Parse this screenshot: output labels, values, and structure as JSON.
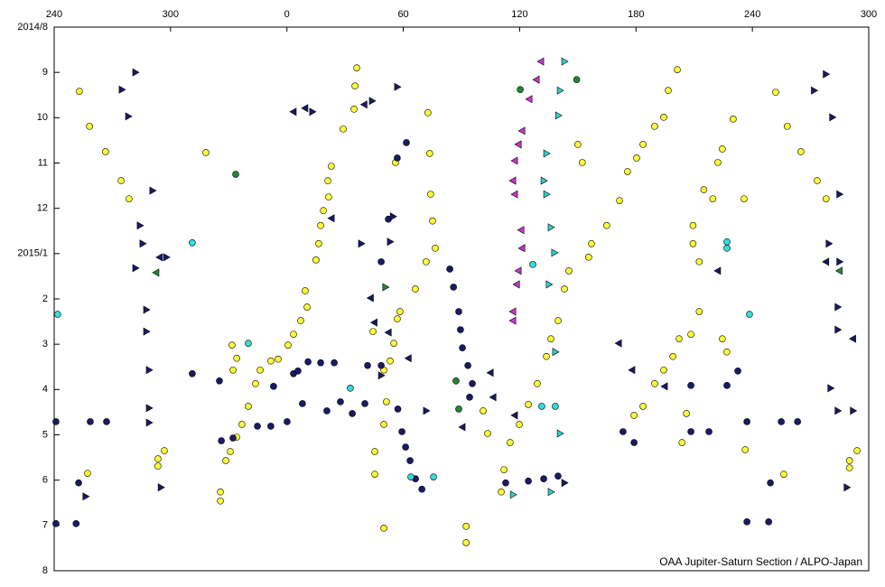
{
  "chart_data": {
    "type": "scatter",
    "annotation": "OAA Jupiter-Saturn Section / ALPO-Japan",
    "xlim": [
      240,
      660
    ],
    "xticks": [
      240,
      300,
      {
        "value": 360,
        "label": "0"
      },
      {
        "value": 420,
        "label": "60"
      },
      {
        "value": 480,
        "label": "120"
      },
      {
        "value": 540,
        "label": "180"
      },
      {
        "value": 600,
        "label": "240"
      },
      {
        "value": 660,
        "label": "300"
      }
    ],
    "ylim": [
      12,
      0
    ],
    "yticks": [
      {
        "value": 0,
        "label": "2014/8"
      },
      {
        "value": 1,
        "label": "9"
      },
      {
        "value": 2,
        "label": "10"
      },
      {
        "value": 3,
        "label": "11"
      },
      {
        "value": 4,
        "label": "12"
      },
      {
        "value": 5,
        "label": "2015/1"
      },
      {
        "value": 6,
        "label": "2"
      },
      {
        "value": 7,
        "label": "3"
      },
      {
        "value": 8,
        "label": "4"
      },
      {
        "value": 9,
        "label": "5"
      },
      {
        "value": 10,
        "label": "6"
      },
      {
        "value": 11,
        "label": "7"
      },
      {
        "value": 12,
        "label": "8"
      }
    ],
    "series": [
      {
        "marker": "circle",
        "color": "#ffff33",
        "x": [
          253.0,
          258.2,
          266.5,
          274.5,
          278.6,
          318.2,
          296.8,
          293.5,
          293.5,
          257.2,
          325.7,
          325.7,
          328.5,
          330.8,
          334.1,
          336.8,
          340.1,
          343.8,
          346.2,
          351.7,
          355.5,
          360.6,
          363.4,
          367.1,
          370.4,
          369.4,
          332.2,
          334.1,
          331.7,
          375.0,
          376.4,
          377.4,
          378.8,
          381.5,
          381.1,
          382.9,
          389.0,
          394.6,
          396.0,
          395.1,
          405.3,
          405.3,
          410.0,
          410.0,
          411.3,
          413.2,
          415.1,
          416.9,
          418.3,
          426.2,
          404.4,
          416.0,
          432.7,
          433.6,
          434.1,
          435.1,
          436.5,
          431.8,
          410.0,
          452.4,
          452.4,
          463.5,
          461.2,
          470.5,
          471.9,
          475.1,
          479.8,
          484.5,
          489.1,
          493.8,
          496.1,
          499.8,
          503.1,
          505.4,
          510.0,
          512.3,
          517.0,
          515.6,
          524.9,
          531.5,
          535.6,
          540.3,
          543.6,
          549.6,
          554.3,
          556.6,
          561.3,
          539.0,
          543.6,
          549.6,
          554.3,
          559.0,
          562.2,
          568.3,
          566.0,
          563.7,
          572.6,
          572.6,
          569.4,
          569.4,
          575.0,
          579.6,
          582.2,
          584.5,
          590.1,
          595.7,
          584.5,
          586.8,
          596.3,
          612.0,
          618.0,
          625.0,
          633.4,
          638.0,
          654.0,
          650.1,
          650.1,
          616.2
        ],
        "y": [
          1.42,
          2.19,
          2.75,
          3.39,
          3.79,
          2.77,
          9.35,
          9.53,
          9.69,
          9.85,
          10.46,
          10.26,
          9.57,
          9.37,
          9.05,
          8.77,
          8.37,
          7.87,
          7.57,
          7.37,
          7.33,
          7.02,
          6.78,
          6.48,
          6.18,
          5.82,
          7.57,
          7.31,
          7.02,
          5.14,
          4.78,
          4.38,
          4.05,
          3.75,
          3.39,
          3.07,
          2.25,
          1.81,
          0.9,
          1.3,
          9.37,
          9.87,
          8.77,
          7.57,
          8.27,
          7.37,
          6.98,
          6.44,
          6.28,
          5.78,
          6.72,
          2.99,
          1.89,
          2.79,
          3.69,
          4.28,
          4.88,
          5.18,
          11.06,
          11.02,
          11.38,
          8.97,
          8.47,
          10.26,
          9.77,
          9.17,
          8.77,
          8.33,
          7.87,
          7.27,
          6.88,
          6.48,
          5.78,
          5.38,
          2.59,
          2.99,
          4.78,
          5.08,
          4.38,
          3.83,
          3.19,
          2.89,
          2.59,
          2.19,
          1.99,
          1.4,
          0.94,
          8.57,
          8.37,
          7.87,
          7.57,
          7.27,
          6.88,
          6.78,
          8.53,
          9.17,
          6.28,
          5.18,
          4.78,
          4.38,
          3.59,
          3.79,
          2.99,
          2.69,
          2.03,
          3.79,
          6.88,
          7.17,
          9.33,
          1.44,
          2.19,
          2.75,
          3.39,
          3.79,
          9.35,
          9.57,
          9.73,
          9.87
        ]
      },
      {
        "marker": "circle",
        "color": "#1a1a66",
        "x": [
          240.9,
          252.6,
          251.3,
          240.9,
          258.6,
          267.0,
          311.2,
          325.2,
          326.2,
          332.2,
          344.8,
          351.7,
          360.1,
          353.1,
          363.4,
          365.7,
          370.9,
          377.4,
          384.4,
          368.0,
          380.6,
          387.6,
          393.7,
          400.2,
          401.6,
          408.6,
          408.6,
          412.3,
          416.9,
          421.6,
          419.3,
          421.2,
          423.5,
          426.3,
          429.6,
          417.2,
          444.0,
          445.9,
          448.6,
          449.5,
          450.5,
          453.3,
          454.2,
          455.6,
          472.8,
          484.5,
          492.4,
          499.8,
          533.3,
          539.0,
          568.3,
          568.3,
          577.6,
          586.9,
          592.5,
          597.2,
          597.2,
          609.3,
          608.4,
          614.9,
          623.3
        ],
        "y": [
          8.71,
          10.06,
          10.96,
          10.96,
          8.71,
          8.71,
          7.65,
          7.81,
          9.13,
          9.07,
          8.81,
          8.81,
          8.71,
          7.93,
          7.65,
          7.59,
          7.39,
          7.41,
          7.41,
          8.31,
          8.47,
          8.27,
          8.53,
          8.31,
          7.47,
          7.47,
          5.18,
          4.24,
          2.89,
          2.55,
          8.93,
          9.27,
          9.57,
          9.97,
          10.2,
          8.43,
          5.34,
          5.74,
          6.28,
          6.68,
          7.08,
          7.47,
          8.17,
          7.87,
          10.06,
          10.02,
          9.97,
          9.91,
          8.93,
          9.17,
          7.91,
          8.93,
          8.93,
          7.91,
          7.59,
          8.71,
          10.92,
          10.06,
          10.92,
          8.71,
          8.71
        ]
      },
      {
        "marker": "triangle-right",
        "color": "#1a1a66",
        "x": [
          274.9,
          281.9,
          278.2,
          284.2,
          285.6,
          281.9,
          287.5,
          287.5,
          288.9,
          288.9,
          288.9,
          295.0,
          256.2,
          297.8,
          290.7,
          373.1,
          398.3,
          403.9,
          416.9,
          413.2,
          408.6,
          431.8,
          414.7,
          503.1,
          637.9,
          631.8,
          641.2,
          644.9,
          639.4,
          644.9,
          644.0,
          644.0,
          640.3,
          644.0,
          651.9,
          648.7
        ],
        "y": [
          1.38,
          1.0,
          1.97,
          4.38,
          4.78,
          5.32,
          6.24,
          6.72,
          7.57,
          8.41,
          8.73,
          10.16,
          10.36,
          5.08,
          3.61,
          1.87,
          4.78,
          1.63,
          1.32,
          4.74,
          7.69,
          8.47,
          4.18,
          10.06,
          1.04,
          1.4,
          1.99,
          3.69,
          4.78,
          5.18,
          6.18,
          6.68,
          7.97,
          8.47,
          8.47,
          10.16
        ]
      },
      {
        "marker": "triangle-left",
        "color": "#1a1a66",
        "x": [
          363.4,
          369.4,
          383.0,
          399.9,
          405.1,
          403.2,
          412.4,
          422.7,
          450.5,
          465.0,
          466.4,
          477.5,
          531.1,
          538.0,
          554.8,
          582.2,
          638.0,
          651.9,
          294.4
        ],
        "y": [
          1.87,
          1.79,
          4.22,
          1.71,
          6.52,
          5.98,
          6.74,
          7.31,
          8.83,
          7.63,
          8.17,
          8.57,
          6.98,
          7.57,
          7.93,
          5.38,
          5.18,
          6.88,
          5.08
        ]
      },
      {
        "marker": "triangle-left",
        "color": "#cc33cc",
        "x": [
          491.0,
          488.7,
          485.0,
          481.3,
          479.4,
          477.5,
          476.6,
          477.5,
          480.8,
          481.3,
          479.4,
          478.5,
          476.6,
          476.6
        ],
        "y": [
          0.76,
          1.16,
          1.59,
          2.29,
          2.59,
          2.95,
          3.39,
          3.69,
          4.48,
          4.88,
          5.38,
          5.68,
          6.28,
          6.48
        ]
      },
      {
        "marker": "triangle-right",
        "color": "#33cccc",
        "x": [
          503.1,
          500.8,
          499.9,
          493.8,
          492.4,
          493.8,
          496.1,
          497.9,
          495.1,
          498.4,
          500.8,
          496.1,
          476.6
        ],
        "y": [
          0.76,
          1.4,
          1.95,
          2.79,
          3.39,
          3.69,
          4.42,
          4.98,
          5.68,
          7.17,
          8.97,
          10.26,
          10.32
        ]
      },
      {
        "marker": "circle",
        "color": "#33dddd",
        "x": [
          241.8,
          311.2,
          340.1,
          392.7,
          423.9,
          435.6,
          486.8,
          491.4,
          498.4,
          586.9,
          586.9,
          598.5
        ],
        "y": [
          6.34,
          4.76,
          6.98,
          7.97,
          9.93,
          9.93,
          5.24,
          8.37,
          8.37,
          4.74,
          4.88,
          6.34
        ]
      },
      {
        "marker": "circle",
        "color": "#228833",
        "x": [
          333.6,
          480.3,
          509.4,
          447.2,
          448.6
        ],
        "y": [
          3.25,
          1.38,
          1.16,
          7.81,
          8.43
        ]
      },
      {
        "marker": "triangle-left",
        "color": "#228833",
        "x": [
          292.6,
          644.9
        ],
        "y": [
          5.42,
          5.38
        ]
      },
      {
        "marker": "triangle-right",
        "color": "#228833",
        "x": [
          410.8
        ],
        "y": [
          5.74
        ]
      }
    ]
  }
}
